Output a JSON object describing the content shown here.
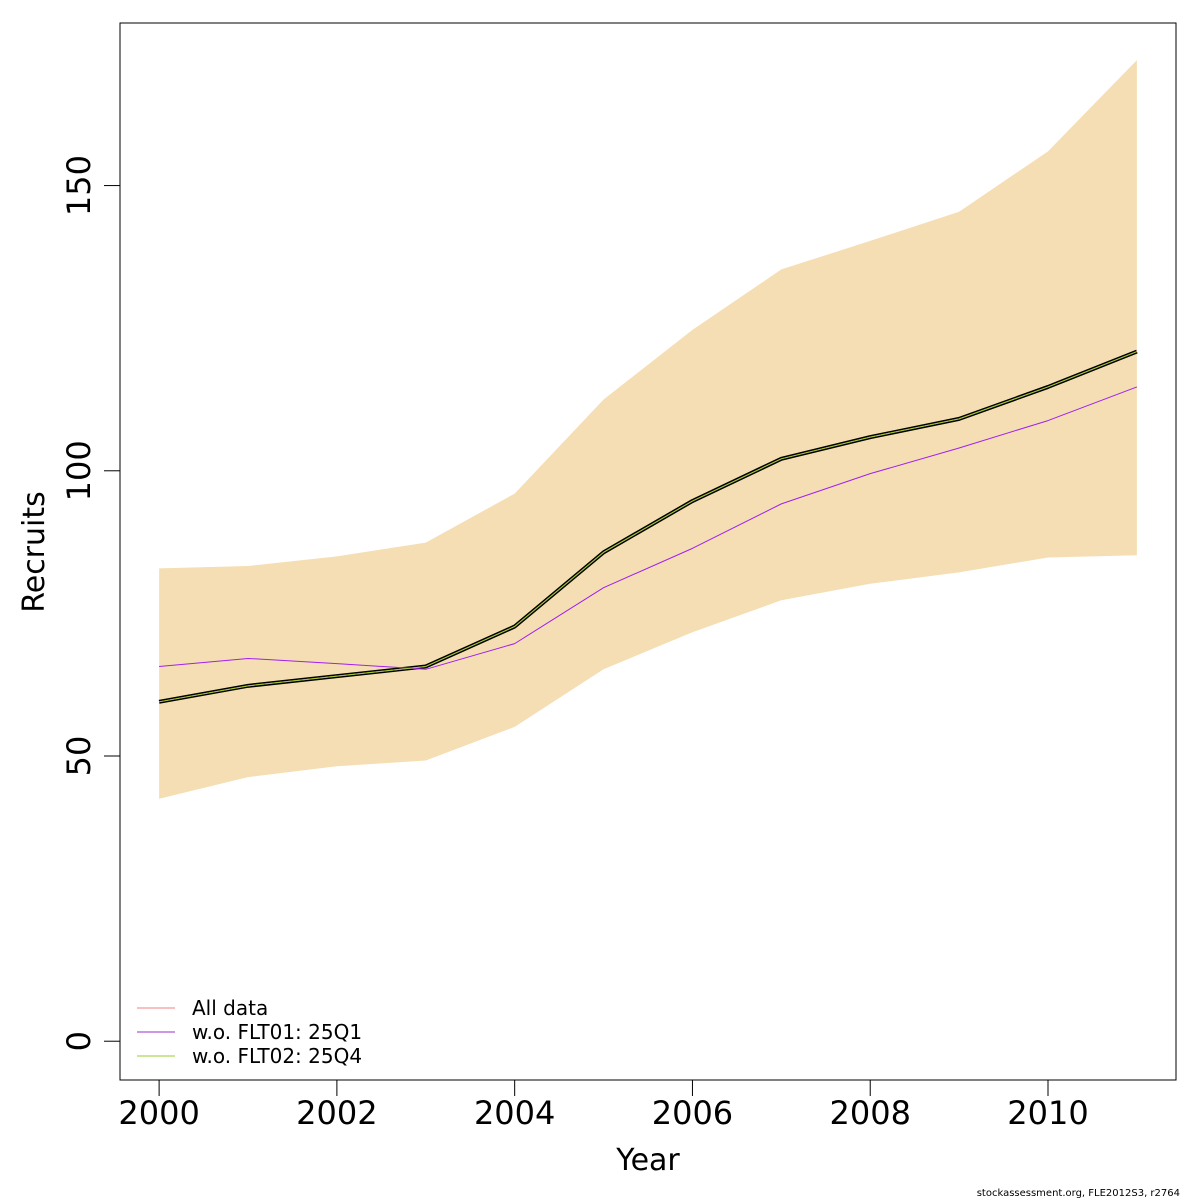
{
  "chart_data": {
    "type": "line",
    "title": "",
    "xlabel": "Year",
    "ylabel": "Recruits",
    "xlim": [
      1999.56,
      2011.44
    ],
    "ylim": [
      -6.8,
      178.5
    ],
    "x_ticks": [
      2000,
      2002,
      2004,
      2006,
      2008,
      2010
    ],
    "y_ticks": [
      0,
      50,
      100,
      150
    ],
    "grid": false,
    "legend_position": "bottom-left",
    "x": [
      2000,
      2001,
      2002,
      2003,
      2004,
      2005,
      2006,
      2007,
      2008,
      2009,
      2010,
      2011
    ],
    "confidence_band": {
      "fill": "#f5deb3",
      "lower": [
        42.5,
        46.3,
        48.2,
        49.2,
        55.1,
        65.2,
        71.7,
        77.3,
        80.2,
        82.2,
        84.8,
        85.2
      ],
      "upper": [
        82.9,
        83.3,
        85.0,
        87.4,
        96.0,
        112.5,
        124.7,
        135.3,
        140.3,
        145.4,
        156.0,
        172.0
      ]
    },
    "series": [
      {
        "name": "All data",
        "color": "#f08080",
        "legend_color": "#f08080",
        "values": [
          59.5,
          62.3,
          64.0,
          65.7,
          72.7,
          85.7,
          94.7,
          102.1,
          105.9,
          109.1,
          114.7,
          120.9
        ]
      },
      {
        "name": "w.o. FLT01: 25Q1",
        "color": "#a020f0",
        "legend_color": "#9a32cd",
        "values": [
          65.7,
          67.1,
          66.2,
          65.2,
          69.7,
          79.5,
          86.4,
          94.2,
          99.5,
          104.0,
          108.8,
          114.7
        ]
      },
      {
        "name": "w.o. FLT02: 25Q4",
        "color": "#9acd32",
        "legend_color": "#9acd32",
        "values": [
          59.5,
          62.3,
          64.0,
          65.7,
          72.7,
          85.7,
          94.7,
          102.1,
          105.9,
          109.1,
          114.7,
          120.9
        ]
      }
    ],
    "overlay_line": {
      "color": "#000000",
      "values": [
        59.5,
        62.3,
        64.0,
        65.7,
        72.7,
        85.7,
        94.7,
        102.1,
        105.9,
        109.1,
        114.7,
        120.9
      ]
    }
  },
  "footer": {
    "credit": "stockassessment.org, FLE2012S3, r2764"
  }
}
